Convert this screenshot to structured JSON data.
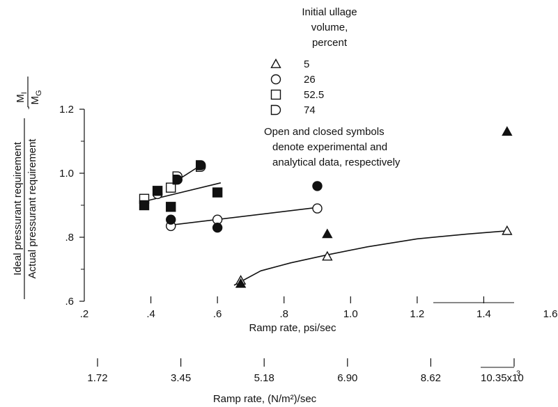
{
  "chart_data": {
    "type": "scatter",
    "x_axis": {
      "title": "Ramp rate, psi/sec",
      "range": [
        0.2,
        1.6
      ],
      "ticks": [
        {
          "value": 0.2,
          "label": ".2"
        },
        {
          "value": 0.4,
          "label": ".4"
        },
        {
          "value": 0.6,
          "label": ".6"
        },
        {
          "value": 0.8,
          "label": ".8"
        },
        {
          "value": 1.0,
          "label": "1.0"
        },
        {
          "value": 1.2,
          "label": "1.2"
        },
        {
          "value": 1.4,
          "label": "1.4"
        },
        {
          "value": 1.6,
          "label": "1.6"
        }
      ]
    },
    "x_axis_secondary": {
      "title": "Ramp rate, (N/m²)/sec",
      "ticks": [
        {
          "value": 0.25,
          "label": "1.72"
        },
        {
          "value": 0.5,
          "label": "3.45"
        },
        {
          "value": 0.75,
          "label": "5.18"
        },
        {
          "value": 1.0,
          "label": "6.90"
        },
        {
          "value": 1.25,
          "label": "8.62"
        },
        {
          "value": 1.5,
          "label": "10.35x10"
        }
      ],
      "exponent_label": "3"
    },
    "y_axis": {
      "title_line1": "Ideal pressurant requirement",
      "title_line2": "Actual pressurant requirement",
      "ratio_numerator": "M",
      "ratio_numerator_sub": "I",
      "ratio_denominator": "M",
      "ratio_denominator_sub": "G",
      "range": [
        0.6,
        1.2
      ],
      "ticks": [
        {
          "value": 0.6,
          "label": ".6"
        },
        {
          "value": 0.8,
          "label": ".8"
        },
        {
          "value": 1.0,
          "label": "1.0"
        },
        {
          "value": 1.2,
          "label": "1.2"
        }
      ]
    },
    "legend": {
      "title_lines": [
        "Initial ullage",
        "volume,",
        "percent"
      ],
      "entries": [
        {
          "marker": "triangle",
          "label": "5"
        },
        {
          "marker": "circle",
          "label": "26"
        },
        {
          "marker": "square",
          "label": "52.5"
        },
        {
          "marker": "d-shape",
          "label": "74"
        }
      ],
      "note_lines": [
        "Open and closed symbols",
        "denote experimental and",
        "analytical data, respectively"
      ]
    },
    "series": [
      {
        "marker": "triangle",
        "experimental": [
          [
            0.67,
            0.665
          ],
          [
            0.93,
            0.74
          ],
          [
            1.47,
            0.82
          ]
        ],
        "analytical": [
          [
            0.67,
            0.655
          ],
          [
            0.93,
            0.81
          ],
          [
            1.47,
            1.13
          ]
        ],
        "fit_curve": [
          [
            0.65,
            0.65
          ],
          [
            0.73,
            0.695
          ],
          [
            0.82,
            0.72
          ],
          [
            0.93,
            0.745
          ],
          [
            1.05,
            0.77
          ],
          [
            1.2,
            0.795
          ],
          [
            1.35,
            0.81
          ],
          [
            1.47,
            0.82
          ]
        ]
      },
      {
        "marker": "circle",
        "experimental": [
          [
            0.42,
            0.935
          ],
          [
            0.46,
            0.835
          ],
          [
            0.6,
            0.855
          ],
          [
            0.9,
            0.89
          ]
        ],
        "analytical": [
          [
            0.46,
            0.855
          ],
          [
            0.6,
            0.83
          ],
          [
            0.9,
            0.96
          ]
        ],
        "fit_line": [
          [
            0.46,
            0.838
          ],
          [
            0.9,
            0.893
          ]
        ]
      },
      {
        "marker": "square",
        "experimental": [
          [
            0.38,
            0.92
          ],
          [
            0.46,
            0.955
          ]
        ],
        "analytical": [
          [
            0.38,
            0.9
          ],
          [
            0.42,
            0.945
          ],
          [
            0.46,
            0.895
          ],
          [
            0.6,
            0.94
          ]
        ],
        "fit_line": [
          [
            0.38,
            0.912
          ],
          [
            0.61,
            0.97
          ]
        ]
      },
      {
        "marker": "d-shape",
        "experimental": [
          [
            0.48,
            0.99
          ],
          [
            0.55,
            1.02
          ]
        ],
        "analytical": [
          [
            0.48,
            0.98
          ],
          [
            0.55,
            1.025
          ]
        ],
        "fit_line": [
          [
            0.46,
            0.965
          ],
          [
            0.55,
            1.025
          ]
        ]
      }
    ]
  }
}
